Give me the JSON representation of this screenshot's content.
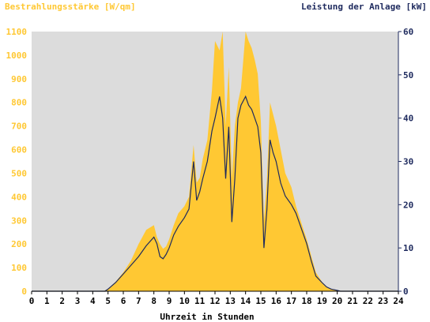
{
  "chart_data": {
    "type": "area",
    "left_axis_title": "Bestrahlungsstärke [W/qm]",
    "right_axis_title": "Leistung der Anlage [kW]",
    "xlabel": "Uhrzeit in Stunden",
    "xlim": [
      0,
      24
    ],
    "ylim_left": [
      0,
      1100
    ],
    "ylim_right": [
      0,
      60
    ],
    "x_ticks": [
      "0",
      "1",
      "2",
      "3",
      "4",
      "5",
      "6",
      "7",
      "8",
      "9",
      "10",
      "11",
      "12",
      "13",
      "14",
      "15",
      "16",
      "17",
      "18",
      "19",
      "20",
      "21",
      "22",
      "23",
      "24"
    ],
    "y_left_ticks": [
      "0",
      "100",
      "200",
      "300",
      "400",
      "500",
      "600",
      "700",
      "800",
      "900",
      "1000",
      "1100"
    ],
    "y_right_ticks": [
      "0",
      "10",
      "20",
      "30",
      "40",
      "50",
      "60"
    ],
    "colors": {
      "irradiance": "#ffc833",
      "power": "#1e2a5e",
      "plot_bg": "#dcdcdc",
      "left_axis_text": "#ffc833",
      "right_axis_text": "#1e2a5e"
    },
    "series": [
      {
        "kind": "area",
        "axis": "left",
        "x": [
          0,
          4.7,
          5.0,
          5.5,
          6.0,
          6.5,
          7.0,
          7.5,
          8.0,
          8.2,
          8.4,
          8.6,
          8.8,
          9.0,
          9.3,
          9.6,
          10.0,
          10.3,
          10.6,
          10.8,
          11.0,
          11.2,
          11.5,
          11.8,
          12.0,
          12.3,
          12.5,
          12.7,
          12.9,
          13.1,
          13.3,
          13.5,
          13.7,
          14.0,
          14.2,
          14.4,
          14.6,
          14.8,
          15.0,
          15.2,
          15.4,
          15.6,
          15.8,
          16.0,
          16.3,
          16.6,
          17.0,
          17.3,
          17.6,
          18.0,
          18.3,
          18.6,
          19.0,
          19.3,
          19.6,
          20.0,
          20.2,
          24
        ],
        "y": [
          0,
          0,
          10,
          40,
          80,
          130,
          200,
          260,
          280,
          230,
          200,
          180,
          190,
          220,
          280,
          330,
          360,
          400,
          620,
          460,
          480,
          560,
          640,
          850,
          1060,
          1020,
          1100,
          700,
          950,
          480,
          700,
          800,
          860,
          1100,
          1060,
          1030,
          980,
          920,
          720,
          300,
          470,
          800,
          750,
          700,
          600,
          500,
          440,
          360,
          300,
          220,
          150,
          80,
          40,
          20,
          10,
          5,
          0,
          0
        ]
      },
      {
        "kind": "line",
        "axis": "right",
        "x": [
          0,
          4.8,
          5.0,
          5.5,
          6.0,
          6.5,
          7.0,
          7.5,
          8.0,
          8.2,
          8.4,
          8.6,
          8.8,
          9.0,
          9.3,
          9.6,
          10.0,
          10.3,
          10.6,
          10.8,
          11.0,
          11.2,
          11.5,
          11.8,
          12.0,
          12.3,
          12.5,
          12.7,
          12.9,
          13.1,
          13.3,
          13.5,
          13.7,
          14.0,
          14.2,
          14.4,
          14.6,
          14.8,
          15.0,
          15.2,
          15.4,
          15.6,
          15.8,
          16.0,
          16.3,
          16.6,
          17.0,
          17.3,
          17.6,
          18.0,
          18.3,
          18.6,
          19.0,
          19.3,
          19.6,
          20.0,
          20.2,
          24
        ],
        "y": [
          0,
          0,
          0.5,
          2,
          4,
          6,
          8,
          10.5,
          12.5,
          11,
          8,
          7.5,
          8.5,
          10,
          13,
          15,
          17,
          19,
          30,
          21,
          23,
          26,
          30,
          37,
          40,
          45,
          40,
          26,
          38,
          16,
          26,
          40,
          43,
          45,
          43,
          42,
          40,
          38,
          32,
          10,
          19,
          35,
          32,
          30,
          25,
          22,
          20,
          18,
          15,
          11,
          7,
          3.5,
          2,
          1,
          0.5,
          0.2,
          0,
          0
        ]
      }
    ]
  }
}
